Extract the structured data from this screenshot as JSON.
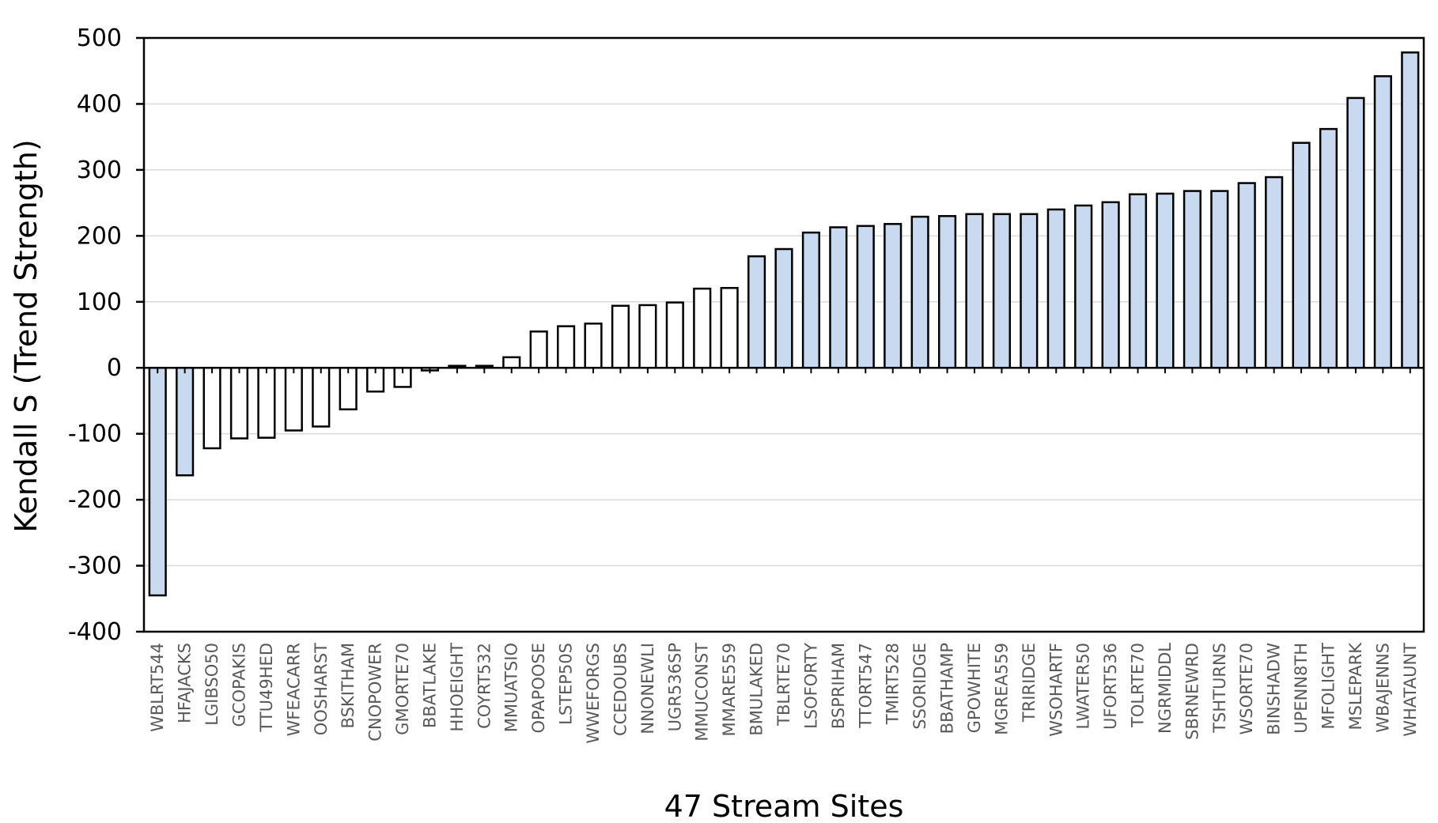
{
  "chart_data": {
    "type": "bar",
    "title": "",
    "xlabel": "47 Stream Sites",
    "ylabel": "Kendall S (Trend Strength)",
    "ylim": [
      -400,
      500
    ],
    "yticks": [
      500,
      400,
      300,
      200,
      100,
      0,
      -100,
      -200,
      -300,
      -400
    ],
    "grid": true,
    "colors": {
      "highlight": "#c9d9f0",
      "plain": "#ffffff",
      "edge": "#000000",
      "grid": "#d9d9d9"
    },
    "categories": [
      "WBLRT544",
      "HFAJACKS",
      "LGIBSO50",
      "GCOPAKIS",
      "TTU49HED",
      "WFEACARR",
      "OOSHARST",
      "BSKITHAM",
      "CNOPOWER",
      "GMORTE70",
      "BBATLAKE",
      "HHOEIGHT",
      "COYRT532",
      "MMUATSIO",
      "OPAPOOSE",
      "LSTEP50S",
      "WWEFORGS",
      "CCEDOUBS",
      "NNONEWLI",
      "UGR536SP",
      "MMUCONST",
      "MMARE559",
      "BMULAKED",
      "TBLRTE70",
      "LSOFORTY",
      "BSPRIHAM",
      "TTORT547",
      "TMIRT528",
      "SSORIDGE",
      "BBATHAMP",
      "GPOWHITE",
      "MGREA559",
      "TRIRIDGE",
      "WSOHARTF",
      "LWATER50",
      "UFORT536",
      "TOLRTE70",
      "NGRMIDDL",
      "SBRNEWRD",
      "TSHTURNS",
      "WSORTE70",
      "BINSHADW",
      "UPENN8TH",
      "MFOLIGHT",
      "MSLEPARK",
      "WBAJENNS",
      "WHATAUNT"
    ],
    "values": [
      -345,
      -163,
      -122,
      -107,
      -106,
      -95,
      -89,
      -63,
      -36,
      -29,
      -4,
      3,
      3,
      16,
      55,
      63,
      67,
      94,
      95,
      99,
      120,
      121,
      169,
      180,
      205,
      213,
      215,
      218,
      229,
      230,
      233,
      233,
      233,
      240,
      246,
      251,
      263,
      264,
      268,
      268,
      280,
      289,
      341,
      362,
      409,
      442,
      478
    ],
    "highlighted": [
      true,
      true,
      false,
      false,
      false,
      false,
      false,
      false,
      false,
      false,
      false,
      false,
      false,
      false,
      false,
      false,
      false,
      false,
      false,
      false,
      false,
      false,
      true,
      true,
      true,
      true,
      true,
      true,
      true,
      true,
      true,
      true,
      true,
      true,
      true,
      true,
      true,
      true,
      true,
      true,
      true,
      true,
      true,
      true,
      true,
      true,
      true
    ]
  }
}
